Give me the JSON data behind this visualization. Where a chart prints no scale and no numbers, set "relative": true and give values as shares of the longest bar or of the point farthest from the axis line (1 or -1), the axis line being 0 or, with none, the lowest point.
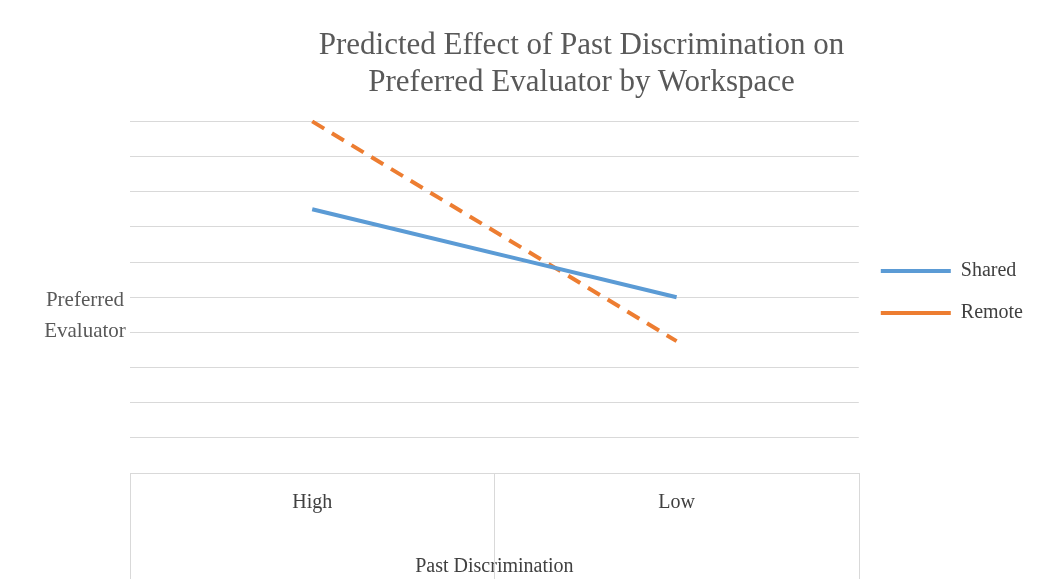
{
  "chart_data": {
    "type": "line",
    "title": "Predicted Effect of Past Discrimination on Preferred Evaluator by Workspace",
    "xlabel": "Past Discrimination",
    "ylabel": "Preferred Evaluator",
    "categories": [
      "High",
      "Low"
    ],
    "relative": true,
    "grid": "y",
    "legend": "right",
    "marker": "none",
    "series": [
      {
        "name": "Shared",
        "color": "#5b9bd5",
        "values": [
          0.75,
          0.5
        ],
        "line_style": "solid"
      },
      {
        "name": "Remote",
        "color": "#ed7d31",
        "values": [
          1,
          0.375
        ],
        "line_style": "dashed"
      }
    ]
  }
}
